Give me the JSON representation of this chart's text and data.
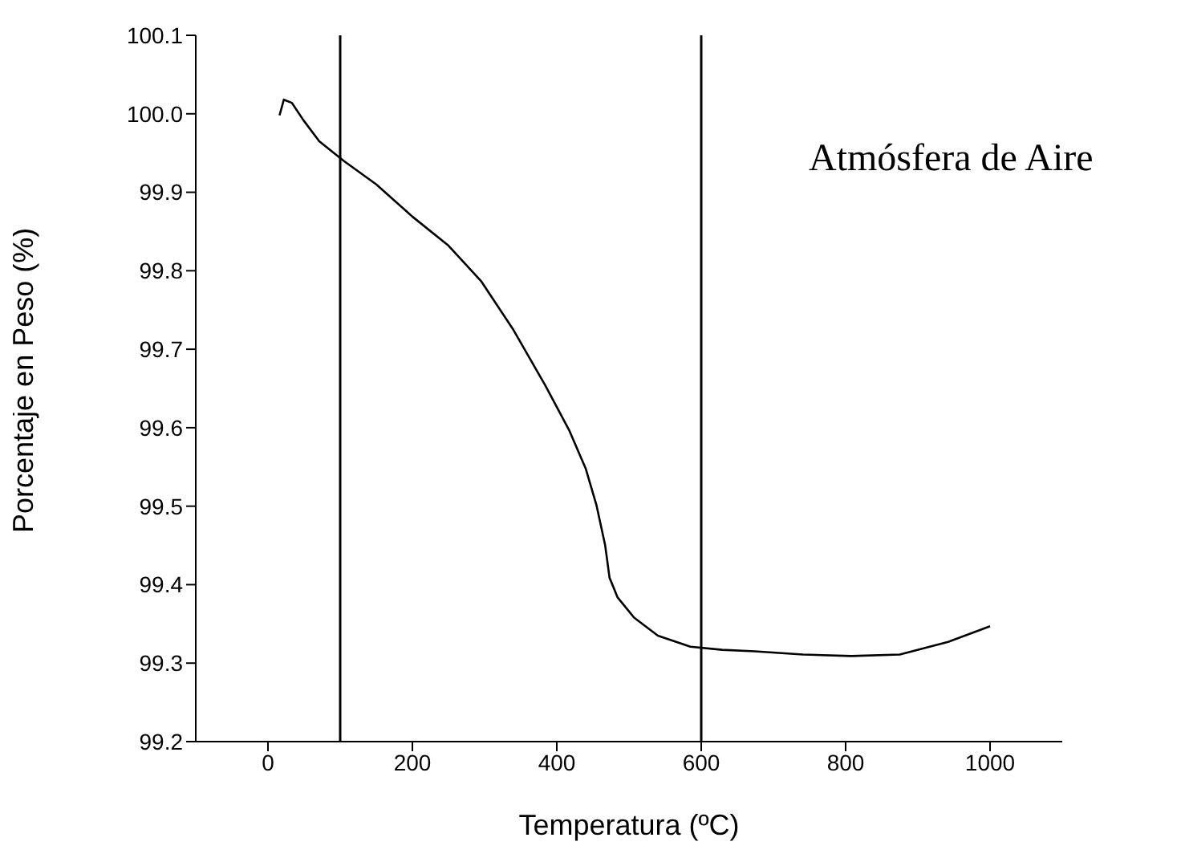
{
  "chart_data": {
    "type": "line",
    "xlabel": "Temperatura (ºC)",
    "ylabel": "Porcentaje en Peso (%)",
    "annotations": [
      "Atmósfera de Aire"
    ],
    "xlim": [
      -100,
      1100
    ],
    "xticks": [
      0,
      200,
      400,
      600,
      800,
      1000
    ],
    "ylim": [
      99.2,
      100.1
    ],
    "yticks": [
      99.2,
      99.3,
      99.4,
      99.5,
      99.6,
      99.7,
      99.8,
      99.9,
      {
        "value": 100,
        "label": "100.0"
      },
      100.1
    ],
    "grid": false,
    "legend": false,
    "marker": "none",
    "line_style": "solid",
    "ref_lines": [
      {
        "axis": "x",
        "value": 100,
        "color": "#000000"
      },
      {
        "axis": "x",
        "value": 600,
        "color": "#000000"
      }
    ],
    "series": [
      {
        "color": "#000000",
        "x": [
          16,
          22,
          33,
          49,
          71,
          105,
          150,
          200,
          250,
          295,
          339,
          384,
          417,
          440,
          455,
          467,
          473,
          484,
          507,
          540,
          585,
          629,
          674,
          741,
          808,
          875,
          942,
          1000
        ],
        "values": [
          99.998,
          100.018,
          100.014,
          99.992,
          99.965,
          99.94,
          99.91,
          99.869,
          99.832,
          99.787,
          99.726,
          99.654,
          99.597,
          99.548,
          99.501,
          99.45,
          99.409,
          99.384,
          99.358,
          99.335,
          99.321,
          99.317,
          99.315,
          99.311,
          99.309,
          99.311,
          99.327,
          99.347
        ]
      }
    ]
  }
}
